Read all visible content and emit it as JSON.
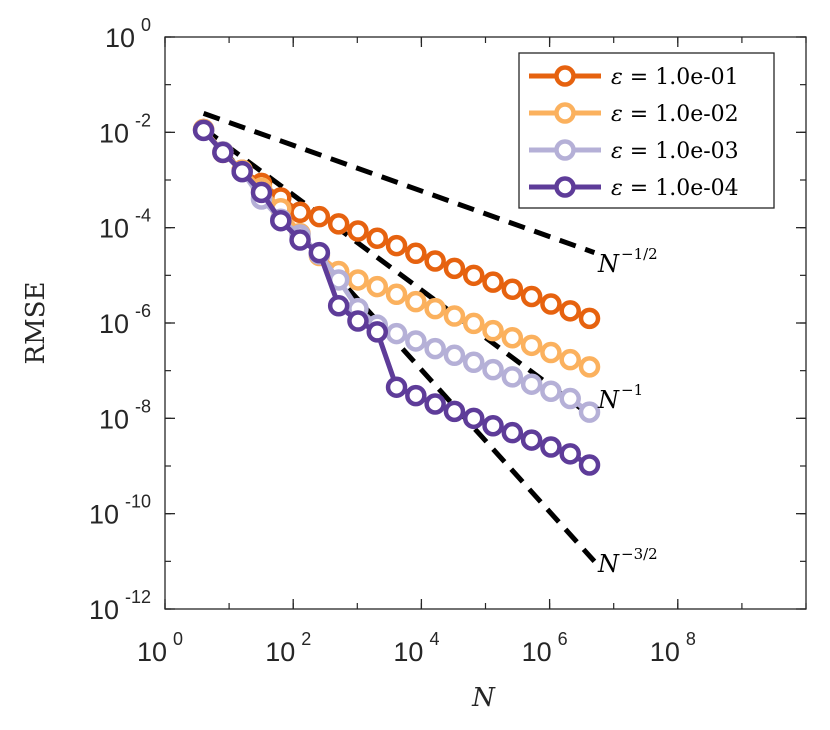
{
  "chart_data": {
    "type": "line",
    "xscale": "log",
    "yscale": "log",
    "xlim": [
      1,
      10000000000.0
    ],
    "ylim": [
      1e-12,
      1
    ],
    "xlabel": "N",
    "ylabel": "RMSE",
    "grid": false,
    "legend_position": "top-right",
    "x_ticks": [
      {
        "base": "10",
        "exp": "0",
        "value": 1
      },
      {
        "base": "10",
        "exp": "2",
        "value": 100
      },
      {
        "base": "10",
        "exp": "4",
        "value": 10000
      },
      {
        "base": "10",
        "exp": "6",
        "value": 1000000
      },
      {
        "base": "10",
        "exp": "8",
        "value": 100000000
      }
    ],
    "y_ticks": [
      {
        "base": "10",
        "exp": "0",
        "value": 1
      },
      {
        "base": "10",
        "exp": "-2",
        "value": 0.01
      },
      {
        "base": "10",
        "exp": "-4",
        "value": 0.0001
      },
      {
        "base": "10",
        "exp": "-6",
        "value": 1e-06
      },
      {
        "base": "10",
        "exp": "-8",
        "value": 1e-08
      },
      {
        "base": "10",
        "exp": "-10",
        "value": 1e-10
      },
      {
        "base": "10",
        "exp": "-12",
        "value": 1e-12
      }
    ],
    "x": [
      4,
      8,
      16,
      32,
      64,
      128,
      256,
      512,
      1024,
      2048,
      4096,
      8192,
      16384,
      32768,
      65536,
      131072,
      262144,
      524288,
      1048576,
      2097152,
      4194304
    ],
    "series": [
      {
        "name": "ε = 1.0e-01",
        "legend_symbol": "ε",
        "legend_text": " = 1.0e-01",
        "color": "#e6620f",
        "values": [
          0.0115,
          0.0038,
          0.0016,
          0.00085,
          0.00042,
          0.00021,
          0.00017,
          0.00012,
          8.5e-05,
          6e-05,
          4.2e-05,
          2.9e-05,
          2e-05,
          1.4e-05,
          1e-05,
          7.2e-06,
          5.1e-06,
          3.6e-06,
          2.5e-06,
          1.8e-06,
          1.25e-06
        ]
      },
      {
        "name": "ε = 1.0e-02",
        "legend_symbol": "ε",
        "legend_text": " = 1.0e-02",
        "color": "#fbb15e",
        "values": [
          0.0115,
          0.0039,
          0.0016,
          0.00068,
          0.00025,
          7.5e-05,
          2.6e-05,
          1.2e-05,
          8e-06,
          5.8e-06,
          4e-06,
          2.8e-06,
          2e-06,
          1.4e-06,
          9.8e-07,
          6.9e-07,
          4.9e-07,
          3.4e-07,
          2.4e-07,
          1.7e-07,
          1.2e-07
        ]
      },
      {
        "name": "ε = 1.0e-03",
        "legend_symbol": "ε",
        "legend_text": " = 1.0e-03",
        "color": "#b5b0d7",
        "values": [
          0.011,
          0.0039,
          0.0015,
          0.0004,
          0.00015,
          7e-05,
          2.8e-05,
          8e-06,
          2e-06,
          9e-07,
          6e-07,
          4.2e-07,
          2.9e-07,
          2.1e-07,
          1.5e-07,
          1.05e-07,
          7.4e-08,
          5.2e-08,
          3.7e-08,
          2.6e-08,
          1.35e-08
        ]
      },
      {
        "name": "ε = 1.0e-04",
        "legend_symbol": "ε",
        "legend_text": " = 1.0e-04",
        "color": "#5e3c99",
        "values": [
          0.011,
          0.0038,
          0.0015,
          0.00055,
          0.00014,
          5.5e-05,
          3e-05,
          2.3e-06,
          1.1e-06,
          6.5e-07,
          4.5e-08,
          3e-08,
          2e-08,
          1.4e-08,
          1e-08,
          7e-09,
          5e-09,
          3.5e-09,
          2.5e-09,
          1.8e-09,
          1.05e-09
        ]
      }
    ],
    "reference_lines": [
      {
        "label_base": "N",
        "label_exp": "−1/2",
        "slope": -0.5,
        "x": [
          4,
          5000000
        ],
        "y": [
          0.025,
          3e-05
        ],
        "style": "dashed",
        "color": "#000000"
      },
      {
        "label_base": "N",
        "label_exp": "−1",
        "slope": -1,
        "x": [
          4,
          5000000
        ],
        "y": [
          0.012,
          1e-08
        ],
        "style": "dashed",
        "color": "#000000"
      },
      {
        "label_base": "N",
        "label_exp": "−3/2",
        "slope": -1.5,
        "x": [
          4,
          5000000
        ],
        "y": [
          0.012,
          1e-11
        ],
        "style": "dashed",
        "color": "#000000"
      }
    ]
  }
}
